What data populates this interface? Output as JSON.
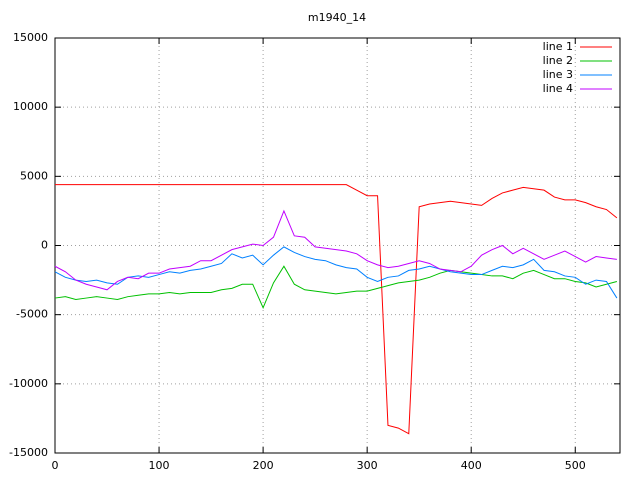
{
  "chart_data": {
    "type": "line",
    "title": "m1940_14",
    "x": [
      0,
      10,
      20,
      30,
      40,
      50,
      60,
      70,
      80,
      90,
      100,
      110,
      120,
      130,
      140,
      150,
      160,
      170,
      180,
      190,
      200,
      210,
      220,
      230,
      240,
      250,
      260,
      270,
      280,
      290,
      300,
      310,
      320,
      330,
      340,
      350,
      360,
      370,
      380,
      390,
      400,
      410,
      420,
      430,
      440,
      450,
      460,
      470,
      480,
      490,
      500,
      510,
      520,
      530,
      540
    ],
    "series": [
      {
        "name": "line 1",
        "color": "#ff0000",
        "values": [
          4400,
          4400,
          4400,
          4400,
          4400,
          4400,
          4400,
          4400,
          4400,
          4400,
          4400,
          4400,
          4400,
          4400,
          4400,
          4400,
          4400,
          4400,
          4400,
          4400,
          4400,
          4400,
          4400,
          4400,
          4400,
          4400,
          4400,
          4400,
          4400,
          4000,
          3600,
          3600,
          -13000,
          -13200,
          -13600,
          2800,
          3000,
          3100,
          3200,
          3100,
          3000,
          2900,
          3400,
          3800,
          4000,
          4200,
          4100,
          4000,
          3500,
          3300,
          3300,
          3100,
          2800,
          2600,
          2000
        ]
      },
      {
        "name": "line 2",
        "color": "#00c000",
        "values": [
          -3800,
          -3700,
          -3900,
          -3800,
          -3700,
          -3800,
          -3900,
          -3700,
          -3600,
          -3500,
          -3500,
          -3400,
          -3500,
          -3400,
          -3400,
          -3400,
          -3200,
          -3100,
          -2800,
          -2800,
          -4500,
          -2700,
          -1500,
          -2800,
          -3200,
          -3300,
          -3400,
          -3500,
          -3400,
          -3300,
          -3300,
          -3100,
          -2900,
          -2700,
          -2600,
          -2500,
          -2300,
          -2000,
          -1800,
          -1900,
          -2000,
          -2100,
          -2200,
          -2200,
          -2400,
          -2000,
          -1800,
          -2100,
          -2400,
          -2400,
          -2600,
          -2700,
          -3000,
          -2800,
          -2600
        ]
      },
      {
        "name": "line 3",
        "color": "#0080ff",
        "values": [
          -1900,
          -2300,
          -2500,
          -2600,
          -2500,
          -2700,
          -2800,
          -2300,
          -2200,
          -2300,
          -2100,
          -1900,
          -2000,
          -1800,
          -1700,
          -1500,
          -1300,
          -600,
          -900,
          -700,
          -1400,
          -700,
          -100,
          -500,
          -800,
          -1000,
          -1100,
          -1400,
          -1600,
          -1700,
          -2300,
          -2600,
          -2300,
          -2200,
          -1800,
          -1700,
          -1500,
          -1700,
          -1900,
          -2000,
          -2100,
          -2100,
          -1800,
          -1500,
          -1600,
          -1400,
          -1000,
          -1800,
          -1900,
          -2200,
          -2300,
          -2800,
          -2500,
          -2600,
          -3800
        ]
      },
      {
        "name": "line 4",
        "color": "#c000ff",
        "values": [
          -1500,
          -1900,
          -2500,
          -2800,
          -3000,
          -3200,
          -2600,
          -2300,
          -2400,
          -2000,
          -2000,
          -1700,
          -1600,
          -1500,
          -1100,
          -1100,
          -700,
          -300,
          -100,
          100,
          0,
          600,
          2500,
          700,
          600,
          -100,
          -200,
          -300,
          -400,
          -600,
          -1100,
          -1400,
          -1600,
          -1500,
          -1300,
          -1100,
          -1300,
          -1700,
          -1800,
          -1900,
          -1500,
          -700,
          -300,
          0,
          -600,
          -200,
          -600,
          -1000,
          -700,
          -400,
          -800,
          -1200,
          -800,
          -900,
          -1000
        ]
      }
    ],
    "xlim": [
      0,
      543
    ],
    "ylim": [
      -15000,
      15000
    ],
    "xticks": [
      0,
      100,
      200,
      300,
      400,
      500
    ],
    "yticks": [
      -15000,
      -10000,
      -5000,
      0,
      5000,
      10000,
      15000
    ],
    "grid": true,
    "legend": "top-right"
  }
}
